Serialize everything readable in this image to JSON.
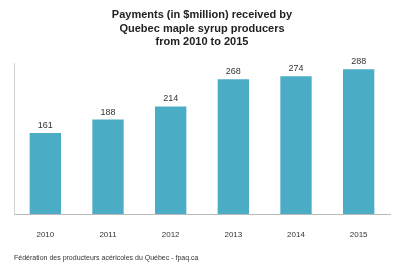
{
  "chart_data": {
    "type": "bar",
    "title": [
      "Payments (in $million) received by",
      "Quebec maple syrup producers",
      "from 2010 to 2015"
    ],
    "source": "Fédération des producteurs acéricoles du Québec - fpaq.ca",
    "categories": [
      "2010",
      "2011",
      "2012",
      "2013",
      "2014",
      "2015"
    ],
    "values": [
      161,
      188,
      214,
      268,
      274,
      288
    ],
    "color": "#4bacc6",
    "ylim": [
      0,
      300
    ],
    "grid": false,
    "data_labels": true,
    "tick_labels": "x"
  }
}
